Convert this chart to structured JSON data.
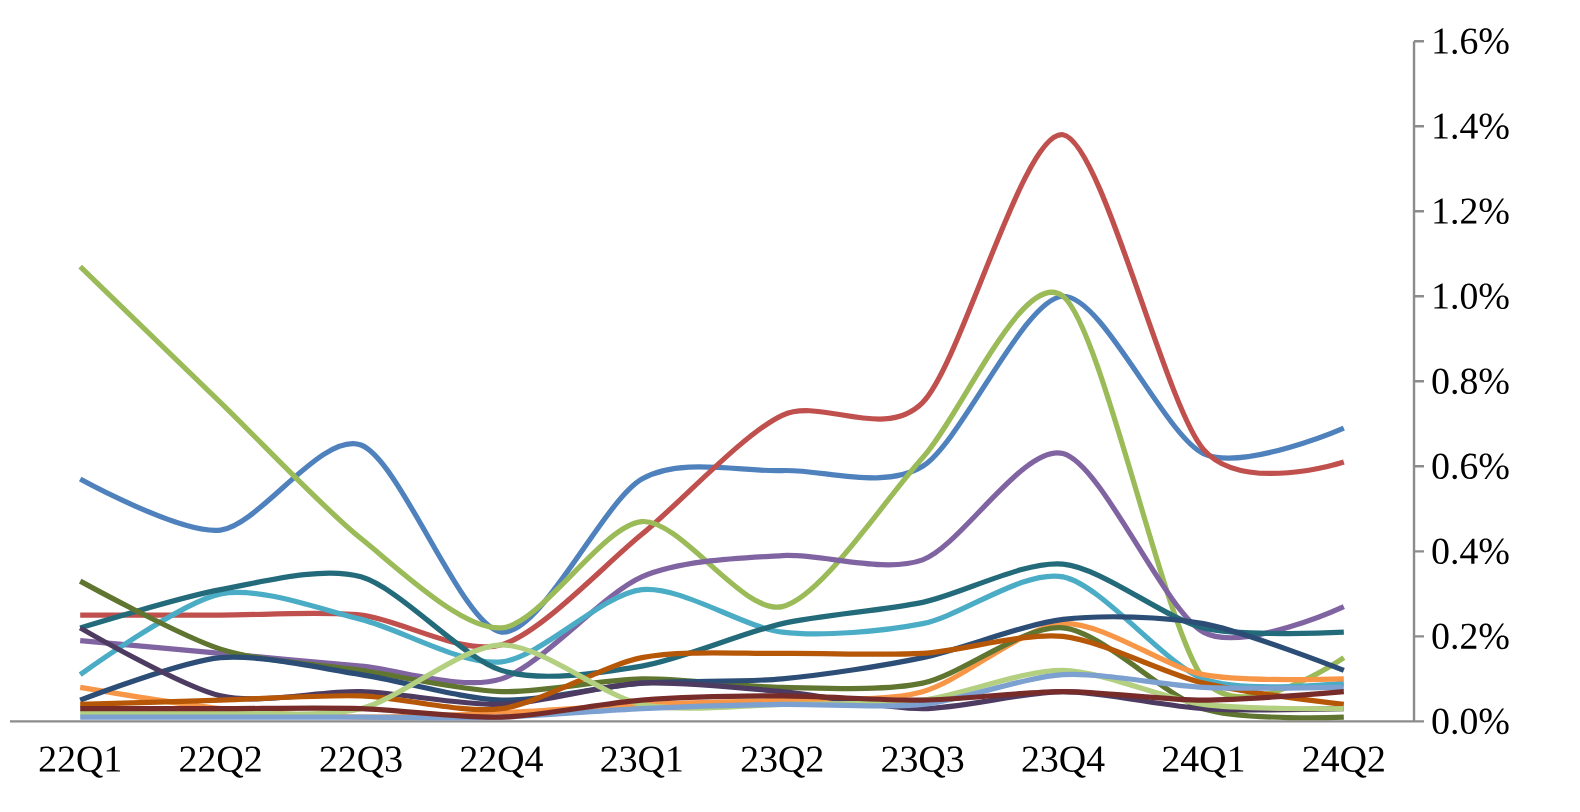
{
  "chart_data": {
    "type": "line",
    "categories": [
      "22Q1",
      "22Q2",
      "22Q3",
      "22Q4",
      "23Q1",
      "23Q2",
      "23Q3",
      "23Q4",
      "24Q1",
      "24Q2"
    ],
    "series": [
      {
        "color": "#4f81bd",
        "values": [
          0.57,
          0.45,
          0.65,
          0.21,
          0.57,
          0.59,
          0.6,
          1.0,
          0.63,
          0.69
        ]
      },
      {
        "color": "#c0504d",
        "values": [
          0.25,
          0.25,
          0.25,
          0.18,
          0.44,
          0.72,
          0.75,
          1.38,
          0.64,
          0.61
        ]
      },
      {
        "color": "#9bbb59",
        "values": [
          1.07,
          0.75,
          0.43,
          0.22,
          0.47,
          0.27,
          0.62,
          1.0,
          0.1,
          0.15
        ]
      },
      {
        "color": "#8064a2",
        "values": [
          0.19,
          0.16,
          0.13,
          0.1,
          0.34,
          0.39,
          0.38,
          0.63,
          0.21,
          0.27
        ]
      },
      {
        "color": "#4bacc6",
        "values": [
          0.11,
          0.3,
          0.24,
          0.14,
          0.31,
          0.21,
          0.23,
          0.34,
          0.1,
          0.09
        ]
      },
      {
        "color": "#f79646",
        "values": [
          0.08,
          0.03,
          0.01,
          0.02,
          0.04,
          0.05,
          0.07,
          0.23,
          0.11,
          0.1
        ]
      },
      {
        "color": "#236b7a",
        "values": [
          0.22,
          0.31,
          0.34,
          0.12,
          0.13,
          0.23,
          0.28,
          0.37,
          0.22,
          0.21
        ]
      },
      {
        "color": "#5f7530",
        "values": [
          0.33,
          0.17,
          0.12,
          0.07,
          0.1,
          0.08,
          0.09,
          0.22,
          0.03,
          0.01
        ]
      },
      {
        "color": "#2c4d75",
        "values": [
          0.05,
          0.15,
          0.11,
          0.05,
          0.09,
          0.1,
          0.15,
          0.24,
          0.23,
          0.12
        ]
      },
      {
        "color": "#4d3b62",
        "values": [
          0.22,
          0.06,
          0.07,
          0.04,
          0.09,
          0.07,
          0.03,
          0.07,
          0.03,
          0.03
        ]
      },
      {
        "color": "#b65708",
        "values": [
          0.04,
          0.05,
          0.06,
          0.03,
          0.15,
          0.16,
          0.16,
          0.2,
          0.09,
          0.04
        ]
      },
      {
        "color": "#b3cf80",
        "values": [
          0.02,
          0.02,
          0.03,
          0.18,
          0.04,
          0.04,
          0.05,
          0.12,
          0.04,
          0.03
        ]
      },
      {
        "color": "#7ca0d0",
        "values": [
          0.01,
          0.01,
          0.01,
          0.01,
          0.03,
          0.04,
          0.04,
          0.11,
          0.08,
          0.08
        ]
      },
      {
        "color": "#772c2a",
        "values": [
          0.03,
          0.03,
          0.03,
          0.01,
          0.05,
          0.06,
          0.05,
          0.07,
          0.05,
          0.07
        ]
      }
    ],
    "ylim": [
      0,
      1.6
    ],
    "yticks": [
      {
        "value": 0,
        "label": "0.0%"
      },
      {
        "value": 0.2,
        "label": "0.2%"
      },
      {
        "value": 0.4,
        "label": "0.4%"
      },
      {
        "value": 0.6,
        "label": "0.6%"
      },
      {
        "value": 0.8,
        "label": "0.8%"
      },
      {
        "value": 1.0,
        "label": "1.0%"
      },
      {
        "value": 1.2,
        "label": "1.2%"
      },
      {
        "value": 1.4,
        "label": "1.4%"
      },
      {
        "value": 1.6,
        "label": "1.6%"
      }
    ],
    "grid": false,
    "marker": "none",
    "line_style": "solid"
  }
}
